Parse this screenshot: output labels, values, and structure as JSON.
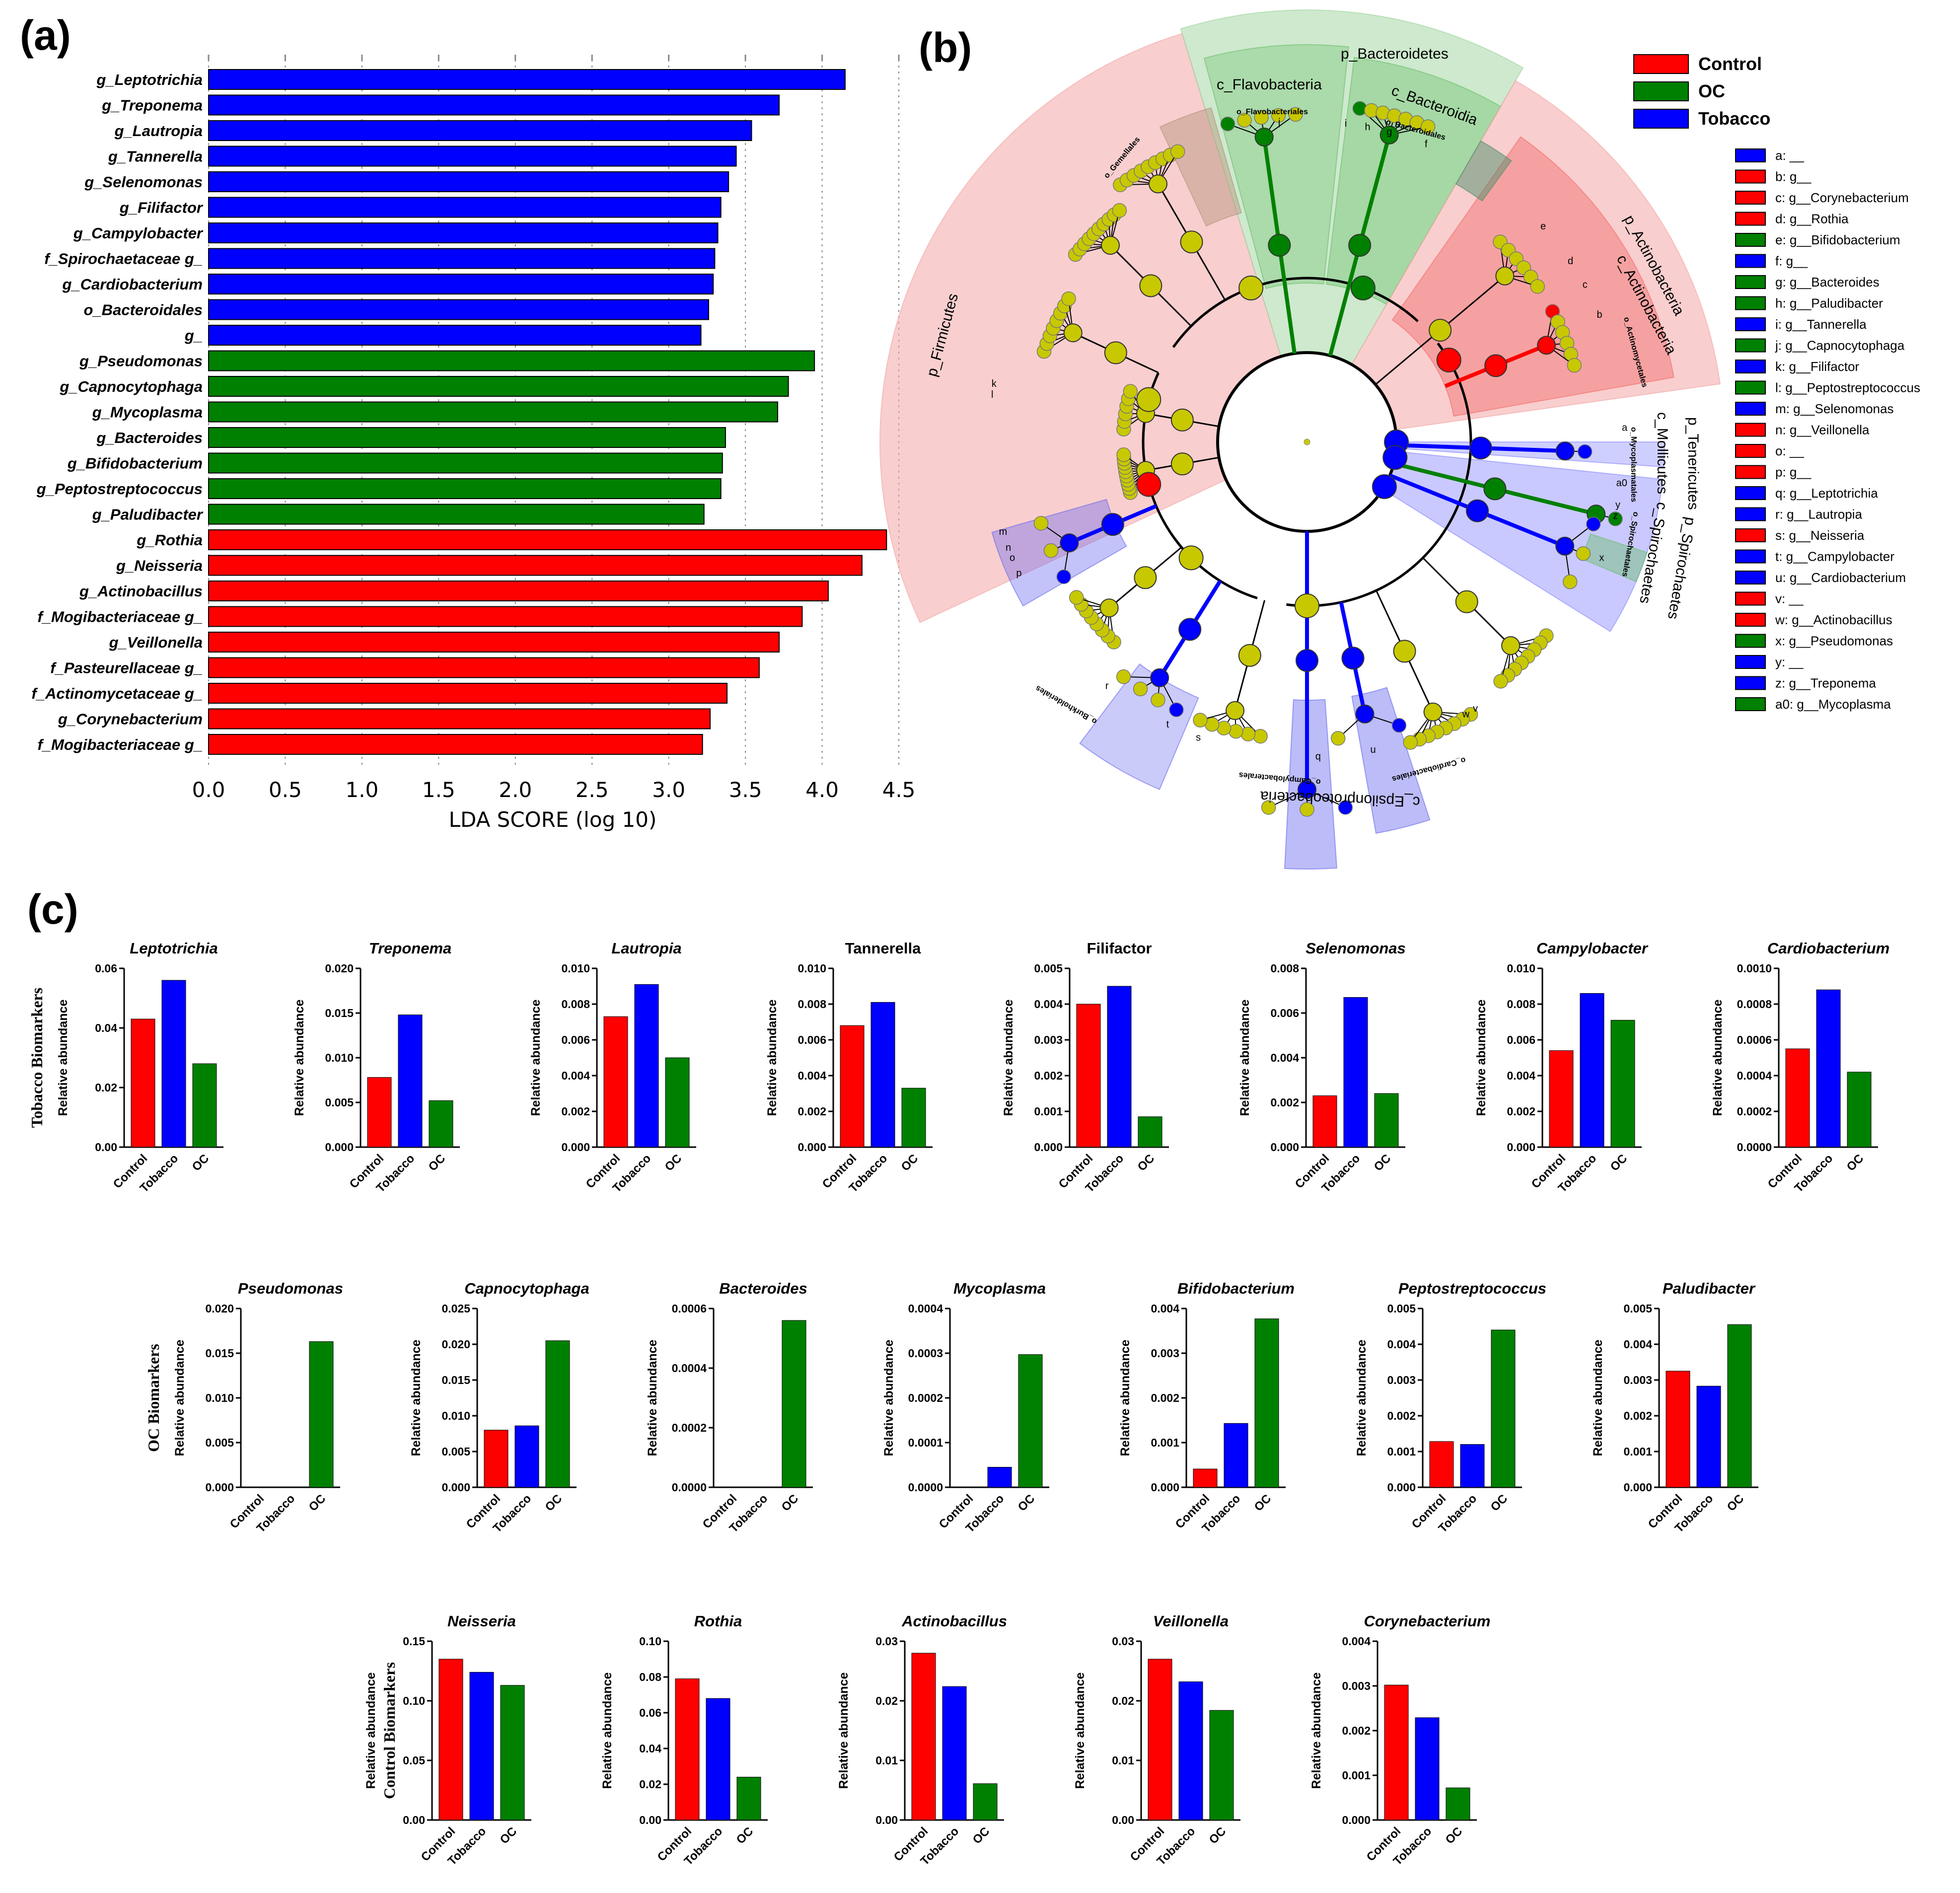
{
  "panel_labels": {
    "a": "(a)",
    "b": "(b)",
    "c": "(c)"
  },
  "colors": {
    "Control": "#ff0000",
    "OC": "#008000",
    "Tobacco": "#0000ff",
    "node": "#c8c800"
  },
  "chart_data": [
    {
      "id": "lda",
      "type": "bar",
      "orientation": "horizontal",
      "xlabel": "LDA SCORE (log 10)",
      "xlim": [
        0,
        4.5
      ],
      "xticks": [
        "0.0",
        "0.5",
        "1.0",
        "1.5",
        "2.0",
        "2.5",
        "3.0",
        "3.5",
        "4.0",
        "4.5"
      ],
      "grid": "vertical dotted",
      "bars": [
        {
          "label": "g_Leptotrichia",
          "value": 4.15,
          "group": "Tobacco"
        },
        {
          "label": "g_Treponema",
          "value": 3.72,
          "group": "Tobacco"
        },
        {
          "label": "g_Lautropia",
          "value": 3.54,
          "group": "Tobacco"
        },
        {
          "label": "g_Tannerella",
          "value": 3.44,
          "group": "Tobacco"
        },
        {
          "label": "g_Selenomonas",
          "value": 3.39,
          "group": "Tobacco"
        },
        {
          "label": "g_Filifactor",
          "value": 3.34,
          "group": "Tobacco"
        },
        {
          "label": "g_Campylobacter",
          "value": 3.32,
          "group": "Tobacco"
        },
        {
          "label": "f_Spirochaetaceae g_",
          "value": 3.3,
          "group": "Tobacco"
        },
        {
          "label": "g_Cardiobacterium",
          "value": 3.29,
          "group": "Tobacco"
        },
        {
          "label": "o_Bacteroidales",
          "value": 3.26,
          "group": "Tobacco"
        },
        {
          "label": "g_",
          "value": 3.21,
          "group": "Tobacco"
        },
        {
          "label": "g_Pseudomonas",
          "value": 3.95,
          "group": "OC"
        },
        {
          "label": "g_Capnocytophaga",
          "value": 3.78,
          "group": "OC"
        },
        {
          "label": "g_Mycoplasma",
          "value": 3.71,
          "group": "OC"
        },
        {
          "label": "g_Bacteroides",
          "value": 3.37,
          "group": "OC"
        },
        {
          "label": "g_Bifidobacterium",
          "value": 3.35,
          "group": "OC"
        },
        {
          "label": "g_Peptostreptococcus",
          "value": 3.34,
          "group": "OC"
        },
        {
          "label": "g_Paludibacter",
          "value": 3.23,
          "group": "OC"
        },
        {
          "label": "g_Rothia",
          "value": 4.42,
          "group": "Control"
        },
        {
          "label": "g_Neisseria",
          "value": 4.26,
          "group": "Control"
        },
        {
          "label": "g_Actinobacillus",
          "value": 4.04,
          "group": "Control"
        },
        {
          "label": "f_Mogibacteriaceae g_",
          "value": 3.87,
          "group": "Control"
        },
        {
          "label": "g_Veillonella",
          "value": 3.72,
          "group": "Control"
        },
        {
          "label": "f_Pasteurellaceae g_",
          "value": 3.59,
          "group": "Control"
        },
        {
          "label": "f_Actinomycetaceae g_",
          "value": 3.38,
          "group": "Control"
        },
        {
          "label": "g_Corynebacterium",
          "value": 3.27,
          "group": "Control"
        },
        {
          "label": "f_Mogibacteriaceae g_",
          "value": 3.22,
          "group": "Control"
        }
      ]
    },
    {
      "id": "small_multiples",
      "type": "bar",
      "categories": [
        "Control",
        "Tobacco",
        "OC"
      ],
      "ylabel": "Relative abundance",
      "rows": [
        {
          "label": "Tobacco Biomarkers",
          "plots": [
            {
              "title": "Leptotrichia",
              "italic": true,
              "ylim": [
                0,
                0.06
              ],
              "ticks": [
                "0.00",
                "0.02",
                "0.04",
                "0.06"
              ],
              "values": [
                0.043,
                0.056,
                0.028
              ]
            },
            {
              "title": "Treponema",
              "italic": true,
              "ylim": [
                0,
                0.02
              ],
              "ticks": [
                "0.000",
                "0.005",
                "0.010",
                "0.015",
                "0.020"
              ],
              "values": [
                0.0078,
                0.0148,
                0.0052
              ]
            },
            {
              "title": "Lautropia",
              "italic": true,
              "ylim": [
                0,
                0.01
              ],
              "ticks": [
                "0.000",
                "0.002",
                "0.004",
                "0.006",
                "0.008",
                "0.010"
              ],
              "values": [
                0.0073,
                0.0091,
                0.005
              ]
            },
            {
              "title": "Tannerella",
              "italic": false,
              "ylim": [
                0,
                0.01
              ],
              "ticks": [
                "0.000",
                "0.002",
                "0.004",
                "0.006",
                "0.008",
                "0.010"
              ],
              "values": [
                0.0068,
                0.0081,
                0.0033
              ]
            },
            {
              "title": "Filifactor",
              "italic": false,
              "ylim": [
                0,
                0.005
              ],
              "ticks": [
                "0.000",
                "0.001",
                "0.002",
                "0.003",
                "0.004",
                "0.005"
              ],
              "values": [
                0.004,
                0.0045,
                0.00085
              ]
            },
            {
              "title": "Selenomonas",
              "italic": true,
              "ylim": [
                0,
                0.008
              ],
              "ticks": [
                "0.000",
                "0.002",
                "0.004",
                "0.006",
                "0.008"
              ],
              "values": [
                0.0023,
                0.0067,
                0.0024
              ]
            },
            {
              "title": "Campylobacter",
              "italic": true,
              "ylim": [
                0,
                0.01
              ],
              "ticks": [
                "0.000",
                "0.002",
                "0.004",
                "0.006",
                "0.008",
                "0.010"
              ],
              "values": [
                0.0054,
                0.0086,
                0.0071
              ]
            },
            {
              "title": "Cardiobacterium",
              "italic": true,
              "ylim": [
                0,
                0.001
              ],
              "ticks": [
                "0.0000",
                "0.0002",
                "0.0004",
                "0.0006",
                "0.0008",
                "0.0010"
              ],
              "values": [
                0.00055,
                0.00088,
                0.00042
              ]
            }
          ]
        },
        {
          "label": "OC Biomarkers",
          "plots": [
            {
              "title": "Pseudomonas",
              "italic": true,
              "ylim": [
                0,
                0.02
              ],
              "ticks": [
                "0.000",
                "0.005",
                "0.010",
                "0.015",
                "0.020"
              ],
              "values": [
                0,
                0,
                0.0163
              ]
            },
            {
              "title": "Capnocytophaga",
              "italic": true,
              "ylim": [
                0,
                0.025
              ],
              "ticks": [
                "0.000",
                "0.005",
                "0.010",
                "0.015",
                "0.020",
                "0.025"
              ],
              "values": [
                0.008,
                0.0086,
                0.0205
              ]
            },
            {
              "title": "Bacteroides",
              "italic": true,
              "ylim": [
                0,
                0.0006
              ],
              "ticks": [
                "0.0000",
                "0.0002",
                "0.0004",
                "0.0006"
              ],
              "values": [
                0,
                0,
                0.00056
              ]
            },
            {
              "title": "Mycoplasma",
              "italic": true,
              "ylim": [
                0,
                0.0004
              ],
              "ticks": [
                "0.0000",
                "0.0001",
                "0.0002",
                "0.0003",
                "0.0004"
              ],
              "values": [
                0,
                4.5e-05,
                0.000297
              ]
            },
            {
              "title": "Bifidobacterium",
              "italic": true,
              "ylim": [
                0,
                0.004
              ],
              "ticks": [
                "0.000",
                "0.001",
                "0.002",
                "0.003",
                "0.004"
              ],
              "values": [
                0.00041,
                0.00143,
                0.00377
              ]
            },
            {
              "title": "Peptostreptococcus",
              "italic": true,
              "ylim": [
                0,
                0.005
              ],
              "ticks": [
                "0.000",
                "0.001",
                "0.002",
                "0.003",
                "0.004",
                "0.005"
              ],
              "values": [
                0.00128,
                0.0012,
                0.0044
              ]
            },
            {
              "title": "Paludibacter",
              "italic": true,
              "ylim": [
                0,
                0.005
              ],
              "ticks": [
                "0.000",
                "0.001",
                "0.002",
                "0.003",
                "0.004",
                "0.005"
              ],
              "values": [
                0.00325,
                0.00283,
                0.00455
              ]
            }
          ]
        },
        {
          "label": "Control Biomarkers",
          "plots": [
            {
              "title": "Neisseria",
              "italic": true,
              "ylim": [
                0,
                0.15
              ],
              "ticks": [
                "0.00",
                "0.05",
                "0.10",
                "0.15"
              ],
              "values": [
                0.135,
                0.124,
                0.113
              ]
            },
            {
              "title": "Rothia",
              "italic": true,
              "ylim": [
                0,
                0.1
              ],
              "ticks": [
                "0.00",
                "0.02",
                "0.04",
                "0.06",
                "0.08",
                "0.10"
              ],
              "values": [
                0.079,
                0.068,
                0.024
              ]
            },
            {
              "title": "Actinobacillus",
              "italic": true,
              "ylim": [
                0,
                0.03
              ],
              "ticks": [
                "0.00",
                "0.01",
                "0.02",
                "0.03"
              ],
              "values": [
                0.028,
                0.0224,
                0.0061
              ]
            },
            {
              "title": "Veillonella",
              "italic": true,
              "ylim": [
                0,
                0.03
              ],
              "ticks": [
                "0.00",
                "0.01",
                "0.02",
                "0.03"
              ],
              "values": [
                0.027,
                0.0232,
                0.0184
              ]
            },
            {
              "title": "Corynebacterium",
              "italic": true,
              "ylim": [
                0,
                0.004
              ],
              "ticks": [
                "0.000",
                "0.001",
                "0.002",
                "0.003",
                "0.004"
              ],
              "values": [
                0.00302,
                0.00229,
                0.00072
              ]
            }
          ]
        }
      ]
    }
  ],
  "cladogram": {
    "legend_main": [
      {
        "label": "Control",
        "group": "Control"
      },
      {
        "label": "OC",
        "group": "OC"
      },
      {
        "label": "Tobacco",
        "group": "Tobacco"
      }
    ],
    "legend_keys": [
      {
        "text": "a: __",
        "group": "Tobacco"
      },
      {
        "text": "b: g__",
        "group": "Control"
      },
      {
        "text": "c: g__Corynebacterium",
        "group": "Control"
      },
      {
        "text": "d: g__Rothia",
        "group": "Control"
      },
      {
        "text": "e: g__Bifidobacterium",
        "group": "OC"
      },
      {
        "text": "f: g__",
        "group": "Tobacco"
      },
      {
        "text": "g: g__Bacteroides",
        "group": "OC"
      },
      {
        "text": "h: g__Paludibacter",
        "group": "OC"
      },
      {
        "text": "i: g__Tannerella",
        "group": "Tobacco"
      },
      {
        "text": "j: g__Capnocytophaga",
        "group": "OC"
      },
      {
        "text": "k: g__Filifactor",
        "group": "Tobacco"
      },
      {
        "text": "l: g__Peptostreptococcus",
        "group": "OC"
      },
      {
        "text": "m: g__Selenomonas",
        "group": "Tobacco"
      },
      {
        "text": "n: g__Veillonella",
        "group": "Control"
      },
      {
        "text": "o: __",
        "group": "Control"
      },
      {
        "text": "p: g__",
        "group": "Control"
      },
      {
        "text": "q: g__Leptotrichia",
        "group": "Tobacco"
      },
      {
        "text": "r: g__Lautropia",
        "group": "Tobacco"
      },
      {
        "text": "s: g__Neisseria",
        "group": "Control"
      },
      {
        "text": "t: g__Campylobacter",
        "group": "Tobacco"
      },
      {
        "text": "u: g__Cardiobacterium",
        "group": "Tobacco"
      },
      {
        "text": "v: __",
        "group": "Control"
      },
      {
        "text": "w: g__Actinobacillus",
        "group": "Control"
      },
      {
        "text": "x: g__Pseudomonas",
        "group": "OC"
      },
      {
        "text": "y: __",
        "group": "Tobacco"
      },
      {
        "text": "z: g__Treponema",
        "group": "Tobacco"
      },
      {
        "text": "a0: g__Mycoplasma",
        "group": "OC"
      }
    ],
    "clade_labels": {
      "bacteroidetes": "p_Bacteroidetes",
      "flavobacteria": "c_Flavobacteria",
      "bacteroidia": "c_Bacteroidia",
      "flavobacteriales": "o_Flavobacteriales",
      "bacteroidales": "o_Bacteroidales",
      "gemellales": "o_Gemellales",
      "firmicutes": "p_Firmicutes",
      "actinobacteria_p": "p_Actinobacteria",
      "actinobacteria_c": "c_Actinobacteria",
      "actinomycetales": "o_Actinomycetales",
      "tenericutes": "p_Tenericutes",
      "mollicutes": "c_Mollicutes",
      "mycoplasmatales": "o_Mycoplasmatales",
      "spirochaetes_c": "c_Spirochaetes",
      "spirochaetes_p": "p_Spirochaetes",
      "spirochaetales": "o_Spirochaetales",
      "burkholderiales": "o_Burkholderiales",
      "campylobacterales": "o_Campylobacterales",
      "cardiobacteriales": "o_Cardiobacteriales",
      "epsilonproteobacteria": "c_Epsilonproteobacteria"
    },
    "leaf_letters": [
      "a",
      "a0",
      "b",
      "c",
      "d",
      "e",
      "f",
      "g",
      "h",
      "i",
      "j",
      "k",
      "l",
      "m",
      "n",
      "o",
      "p",
      "q",
      "r",
      "s",
      "t",
      "u",
      "v",
      "w",
      "x",
      "y",
      "z"
    ]
  }
}
